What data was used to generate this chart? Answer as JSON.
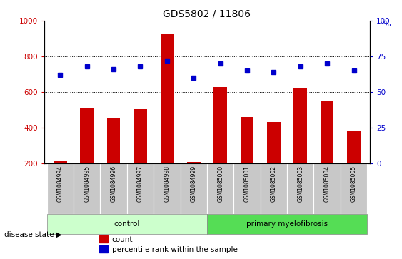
{
  "title": "GDS5802 / 11806",
  "samples": [
    "GSM1084994",
    "GSM1084995",
    "GSM1084996",
    "GSM1084997",
    "GSM1084998",
    "GSM1084999",
    "GSM1085000",
    "GSM1085001",
    "GSM1085002",
    "GSM1085003",
    "GSM1085004",
    "GSM1085005"
  ],
  "counts": [
    215,
    515,
    455,
    505,
    930,
    210,
    630,
    460,
    435,
    625,
    555,
    385
  ],
  "percentiles": [
    62,
    68,
    66,
    68,
    72,
    60,
    70,
    65,
    64,
    68,
    70,
    65
  ],
  "bar_color": "#CC0000",
  "dot_color": "#0000CC",
  "ylim_left": [
    200,
    1000
  ],
  "ylim_right": [
    0,
    100
  ],
  "yticks_left": [
    200,
    400,
    600,
    800,
    1000
  ],
  "yticks_right": [
    0,
    25,
    50,
    75,
    100
  ],
  "tick_label_color_left": "#CC0000",
  "tick_label_color_right": "#0000CC",
  "bar_width": 0.5,
  "control_color": "#CCFFCC",
  "pmf_color": "#55DD55",
  "cell_color": "#C8C8C8",
  "cell_border_color": "#FFFFFF",
  "n_control": 6,
  "n_pmf": 6
}
